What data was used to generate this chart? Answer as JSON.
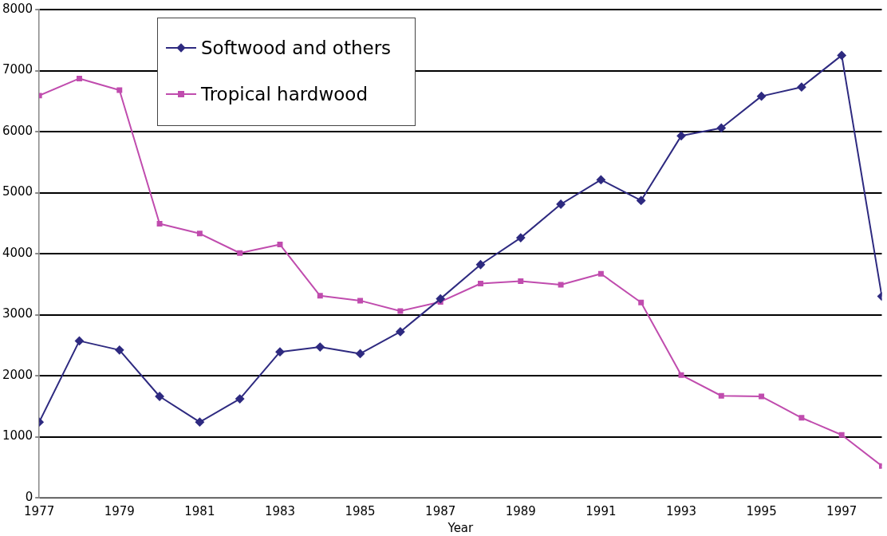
{
  "chart_data": {
    "type": "line",
    "xlabel": "Year",
    "x": [
      1977,
      1978,
      1979,
      1980,
      1981,
      1982,
      1983,
      1984,
      1985,
      1986,
      1987,
      1988,
      1989,
      1990,
      1991,
      1992,
      1993,
      1994,
      1995,
      1996,
      1997,
      1998
    ],
    "series": [
      {
        "name": "Softwood and others",
        "color": "#2e2a80",
        "marker": "diamond",
        "values": [
          1240,
          2570,
          2420,
          1660,
          1240,
          1620,
          2390,
          2470,
          2360,
          2720,
          3260,
          3820,
          4260,
          4810,
          5210,
          4870,
          5930,
          6060,
          6580,
          6730,
          7250,
          3300
        ]
      },
      {
        "name": "Tropical hardwood",
        "color": "#c04cae",
        "marker": "square",
        "values": [
          6590,
          6870,
          6680,
          4490,
          4330,
          4010,
          4150,
          3310,
          3230,
          3060,
          3210,
          3510,
          3550,
          3490,
          3670,
          3200,
          2010,
          1670,
          1660,
          1310,
          1030,
          520
        ]
      }
    ],
    "xlim": [
      1977,
      1998
    ],
    "xticks": [
      1977,
      1979,
      1981,
      1983,
      1985,
      1987,
      1989,
      1991,
      1993,
      1995,
      1997
    ],
    "ylim": [
      0,
      8000
    ],
    "yticks": [
      0,
      1000,
      2000,
      3000,
      4000,
      5000,
      6000,
      7000,
      8000
    ],
    "grid": "y",
    "legend": "top left",
    "line_style": "solid"
  }
}
